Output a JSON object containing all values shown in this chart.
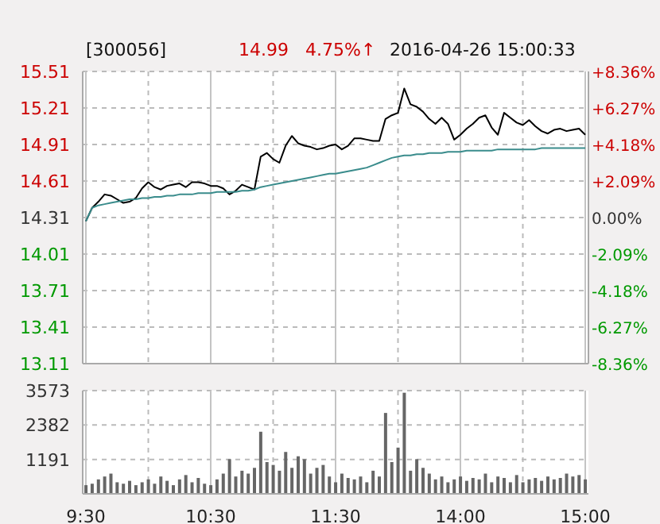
{
  "chart_data": [
    {
      "type": "line",
      "title": "[300056]",
      "annotations": [
        "14.99",
        "4.75%↑",
        "2016-04-26 15:00:33"
      ],
      "categories": [
        null,
        null,
        null,
        null,
        null,
        null,
        null,
        null,
        null,
        null,
        null,
        null,
        null,
        null,
        null,
        null,
        null,
        null,
        null,
        null,
        null,
        null,
        null,
        null,
        null,
        null,
        null,
        null,
        null,
        null,
        null,
        null,
        null,
        null,
        null,
        null,
        null,
        null,
        null,
        null,
        null,
        null,
        null,
        null,
        null,
        null,
        null,
        null,
        null,
        null,
        null,
        null,
        null,
        null,
        null,
        null,
        null,
        null,
        null,
        null,
        null,
        null,
        null,
        null,
        null,
        null,
        null,
        null,
        null,
        null,
        null,
        null,
        null,
        null,
        null,
        null,
        null,
        null,
        null,
        null,
        null
      ],
      "series": [
        {
          "color": "#000000",
          "values": [
            14.28,
            14.39,
            14.44,
            14.5,
            14.49,
            14.46,
            14.43,
            14.44,
            14.47,
            14.55,
            14.6,
            14.56,
            14.54,
            14.57,
            14.58,
            14.59,
            14.56,
            14.6,
            14.6,
            14.59,
            14.57,
            14.57,
            14.55,
            14.5,
            14.53,
            14.58,
            14.56,
            14.54,
            14.81,
            14.84,
            14.79,
            14.76,
            14.9,
            14.98,
            14.92,
            14.9,
            14.89,
            14.87,
            14.88,
            14.9,
            14.91,
            14.87,
            14.9,
            14.96,
            14.96,
            14.95,
            14.94,
            14.94,
            15.12,
            15.15,
            15.17,
            15.37,
            15.24,
            15.22,
            15.18,
            15.12,
            15.08,
            15.13,
            15.08,
            14.95,
            14.99,
            15.04,
            15.08,
            15.13,
            15.15,
            15.05,
            14.99,
            15.17,
            15.13,
            15.09,
            15.07,
            15.11,
            15.06,
            15.02,
            15.0,
            15.03,
            15.04,
            15.02,
            15.03,
            15.04,
            14.99
          ]
        },
        {
          "color": "#3a8c8c",
          "values": [
            14.28,
            14.39,
            14.41,
            14.42,
            14.43,
            14.44,
            14.45,
            14.46,
            14.46,
            14.47,
            14.47,
            14.48,
            14.48,
            14.49,
            14.49,
            14.5,
            14.5,
            14.5,
            14.51,
            14.51,
            14.51,
            14.52,
            14.52,
            14.52,
            14.52,
            14.53,
            14.53,
            14.54,
            14.56,
            14.57,
            14.58,
            14.59,
            14.6,
            14.61,
            14.62,
            14.63,
            14.64,
            14.65,
            14.66,
            14.67,
            14.67,
            14.68,
            14.69,
            14.7,
            14.71,
            14.72,
            14.74,
            14.76,
            14.78,
            14.8,
            14.81,
            14.82,
            14.82,
            14.83,
            14.83,
            14.84,
            14.84,
            14.84,
            14.85,
            14.85,
            14.85,
            14.86,
            14.86,
            14.86,
            14.86,
            14.86,
            14.87,
            14.87,
            14.87,
            14.87,
            14.87,
            14.87,
            14.87,
            14.88,
            14.88,
            14.88,
            14.88,
            14.88,
            14.88,
            14.88,
            14.88
          ]
        }
      ],
      "ylim": [
        13.11,
        15.51
      ],
      "yticks": [
        13.11,
        13.41,
        13.71,
        14.01,
        14.31,
        14.61,
        14.91,
        15.21,
        15.51
      ],
      "y2lim": [
        -8.36,
        8.36
      ],
      "y2ticks": [
        {
          "value": -8.36,
          "label": "-8.36%"
        },
        {
          "value": -6.27,
          "label": "-6.27%"
        },
        {
          "value": -4.18,
          "label": "-4.18%"
        },
        {
          "value": -2.09,
          "label": "-2.09%"
        },
        {
          "value": 0,
          "label": "0.00%"
        },
        {
          "value": 2.09,
          "label": "+2.09%"
        },
        {
          "value": 4.18,
          "label": "+4.18%"
        },
        {
          "value": 6.27,
          "label": "+6.27%"
        },
        {
          "value": 8.36,
          "label": "+8.36%"
        }
      ],
      "grid": true,
      "tick_labels": "y"
    },
    {
      "type": "bar",
      "categories": [
        "9:30",
        null,
        null,
        null,
        null,
        null,
        null,
        null,
        null,
        null,
        null,
        null,
        null,
        null,
        null,
        null,
        null,
        null,
        null,
        null,
        "10:30",
        null,
        null,
        null,
        null,
        null,
        null,
        null,
        null,
        null,
        null,
        null,
        null,
        null,
        null,
        null,
        null,
        null,
        null,
        null,
        "11:30",
        null,
        null,
        null,
        null,
        null,
        null,
        null,
        null,
        null,
        null,
        null,
        null,
        null,
        null,
        null,
        null,
        null,
        null,
        null,
        "14:00",
        null,
        null,
        null,
        null,
        null,
        null,
        null,
        null,
        null,
        null,
        null,
        null,
        null,
        null,
        null,
        null,
        null,
        null,
        null,
        "15:00"
      ],
      "series": [
        {
          "color": "#666666",
          "values": [
            300,
            350,
            500,
            600,
            700,
            400,
            350,
            450,
            300,
            400,
            500,
            350,
            600,
            450,
            300,
            500,
            650,
            400,
            550,
            350,
            300,
            500,
            700,
            1200,
            600,
            800,
            700,
            900,
            2150,
            1100,
            1000,
            800,
            1450,
            900,
            1300,
            1200,
            700,
            900,
            1000,
            600,
            400,
            700,
            550,
            500,
            600,
            400,
            800,
            600,
            2800,
            1100,
            1600,
            3500,
            800,
            1200,
            900,
            700,
            500,
            600,
            400,
            500,
            600,
            450,
            550,
            500,
            700,
            400,
            600,
            550,
            400,
            650,
            400,
            500,
            550,
            450,
            600,
            500,
            550,
            700,
            600,
            650,
            500
          ]
        }
      ],
      "ylim": [
        0,
        3573
      ],
      "yticks": [
        1191,
        2382,
        3573
      ],
      "grid": true
    }
  ]
}
